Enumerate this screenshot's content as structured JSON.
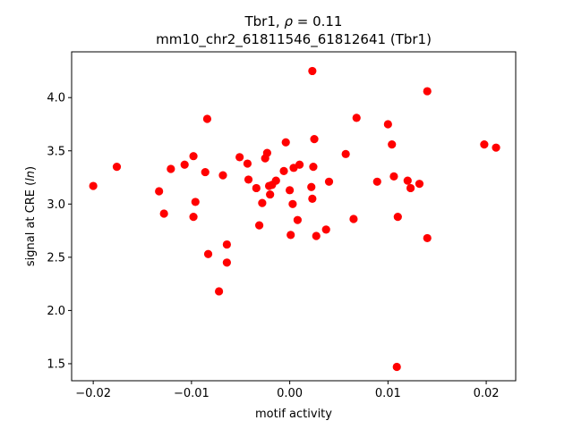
{
  "chart_data": {
    "type": "scatter",
    "title_prefix": "Tbr1, ",
    "title_rho_symbol": "ρ",
    "title_rho_eq": " = 0.11",
    "subtitle": "mm10_chr2_61811546_61812641 (Tbr1)",
    "xlabel": "motif activity",
    "ylabel_prefix": "signal at CRE (",
    "ylabel_italic": "ln",
    "ylabel_suffix": ")",
    "xlim": [
      -0.0222,
      0.023
    ],
    "ylim": [
      1.34,
      4.43
    ],
    "x_ticks": [
      -0.02,
      -0.01,
      0.0,
      0.01,
      0.02
    ],
    "x_tick_labels": [
      "−0.02",
      "−0.01",
      "0.00",
      "0.01",
      "0.02"
    ],
    "y_ticks": [
      1.5,
      2.0,
      2.5,
      3.0,
      3.5,
      4.0
    ],
    "y_tick_labels": [
      "1.5",
      "2.0",
      "2.5",
      "3.0",
      "3.5",
      "4.0"
    ],
    "grid": false,
    "legend": false,
    "marker_color": "#ff0000",
    "points": [
      {
        "x": -0.02,
        "y": 3.17
      },
      {
        "x": -0.0176,
        "y": 3.35
      },
      {
        "x": -0.0133,
        "y": 3.12
      },
      {
        "x": -0.0128,
        "y": 2.91
      },
      {
        "x": -0.0121,
        "y": 3.33
      },
      {
        "x": -0.0107,
        "y": 3.37
      },
      {
        "x": -0.0098,
        "y": 3.45
      },
      {
        "x": -0.0098,
        "y": 2.88
      },
      {
        "x": -0.0096,
        "y": 3.02
      },
      {
        "x": -0.0086,
        "y": 3.3
      },
      {
        "x": -0.0084,
        "y": 3.8
      },
      {
        "x": -0.0083,
        "y": 2.53
      },
      {
        "x": -0.0072,
        "y": 2.18
      },
      {
        "x": -0.0068,
        "y": 3.27
      },
      {
        "x": -0.0064,
        "y": 2.62
      },
      {
        "x": -0.0064,
        "y": 2.45
      },
      {
        "x": -0.0051,
        "y": 3.44
      },
      {
        "x": -0.0043,
        "y": 3.38
      },
      {
        "x": -0.0042,
        "y": 3.23
      },
      {
        "x": -0.0034,
        "y": 3.15
      },
      {
        "x": -0.0031,
        "y": 2.8
      },
      {
        "x": -0.0028,
        "y": 3.01
      },
      {
        "x": -0.0025,
        "y": 3.43
      },
      {
        "x": -0.0023,
        "y": 3.48
      },
      {
        "x": -0.0021,
        "y": 3.17
      },
      {
        "x": -0.002,
        "y": 3.09
      },
      {
        "x": -0.0018,
        "y": 3.18
      },
      {
        "x": -0.0014,
        "y": 3.22
      },
      {
        "x": -0.0006,
        "y": 3.31
      },
      {
        "x": -0.0004,
        "y": 3.58
      },
      {
        "x": 0.0,
        "y": 3.13
      },
      {
        "x": 0.0001,
        "y": 2.71
      },
      {
        "x": 0.0003,
        "y": 3.0
      },
      {
        "x": 0.0004,
        "y": 3.34
      },
      {
        "x": 0.0008,
        "y": 2.85
      },
      {
        "x": 0.001,
        "y": 3.37
      },
      {
        "x": 0.0022,
        "y": 3.16
      },
      {
        "x": 0.0023,
        "y": 3.05
      },
      {
        "x": 0.0023,
        "y": 4.25
      },
      {
        "x": 0.0024,
        "y": 3.35
      },
      {
        "x": 0.0025,
        "y": 3.61
      },
      {
        "x": 0.0027,
        "y": 2.7
      },
      {
        "x": 0.0037,
        "y": 2.76
      },
      {
        "x": 0.004,
        "y": 3.21
      },
      {
        "x": 0.0057,
        "y": 3.47
      },
      {
        "x": 0.0065,
        "y": 2.86
      },
      {
        "x": 0.0068,
        "y": 3.81
      },
      {
        "x": 0.0089,
        "y": 3.21
      },
      {
        "x": 0.01,
        "y": 3.75
      },
      {
        "x": 0.0104,
        "y": 3.56
      },
      {
        "x": 0.0106,
        "y": 3.26
      },
      {
        "x": 0.0109,
        "y": 1.47
      },
      {
        "x": 0.011,
        "y": 2.88
      },
      {
        "x": 0.012,
        "y": 3.22
      },
      {
        "x": 0.0123,
        "y": 3.15
      },
      {
        "x": 0.0132,
        "y": 3.19
      },
      {
        "x": 0.014,
        "y": 4.06
      },
      {
        "x": 0.014,
        "y": 2.68
      },
      {
        "x": 0.0198,
        "y": 3.56
      },
      {
        "x": 0.021,
        "y": 3.53
      }
    ]
  }
}
